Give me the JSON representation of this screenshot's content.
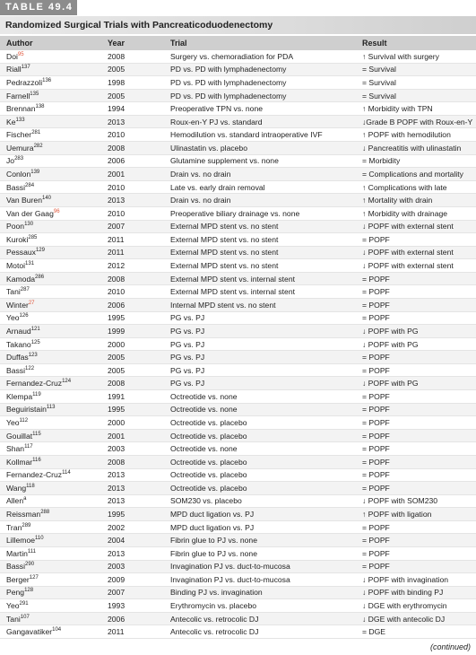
{
  "header": {
    "label": "TABLE 49.4",
    "title": "Randomized Surgical Trials with Pancreaticoduodenectomy"
  },
  "table": {
    "columns": [
      "Author",
      "Year",
      "Trial",
      "Result"
    ],
    "rows": [
      {
        "author": "Doi",
        "ref": "95",
        "ref_color": "#e0553a",
        "year": 2008,
        "trial": "Surgery vs. chemoradiation for PDA",
        "result": "↑ Survival with surgery"
      },
      {
        "author": "Riall",
        "ref": "137",
        "year": 2005,
        "trial": "PD vs. PD with lymphadenectomy",
        "result": "= Survival"
      },
      {
        "author": "Pedrazzoli",
        "ref": "136",
        "year": 1998,
        "trial": "PD vs. PD with lymphadenectomy",
        "result": "= Survival"
      },
      {
        "author": "Farnell",
        "ref": "135",
        "year": 2005,
        "trial": "PD vs. PD with lymphadenectomy",
        "result": "= Survival"
      },
      {
        "author": "Brennan",
        "ref": "138",
        "year": 1994,
        "trial": "Preoperative TPN vs. none",
        "result": "↑ Morbidity with TPN"
      },
      {
        "author": "Ke",
        "ref": "133",
        "year": 2013,
        "trial": "Roux-en-Y PJ vs. standard",
        "result": "↓Grade B POPF with Roux-en-Y"
      },
      {
        "author": "Fischer",
        "ref": "281",
        "year": 2010,
        "trial": "Hemodilution vs. standard intraoperative IVF",
        "result": "↑ POPF with hemodilution"
      },
      {
        "author": "Uemura",
        "ref": "282",
        "year": 2008,
        "trial": "Ulinastatin vs. placebo",
        "result": "↓ Pancreatitis with ulinastatin"
      },
      {
        "author": "Jo",
        "ref": "283",
        "year": 2006,
        "trial": "Glutamine supplement vs. none",
        "result": "= Morbidity"
      },
      {
        "author": "Conlon",
        "ref": "139",
        "year": 2001,
        "trial": "Drain vs. no drain",
        "result": "= Complications and mortality"
      },
      {
        "author": "Bassi",
        "ref": "284",
        "year": 2010,
        "trial": "Late vs. early drain removal",
        "result": "↑ Complications with late"
      },
      {
        "author": "Van Buren",
        "ref": "140",
        "year": 2013,
        "trial": "Drain vs. no drain",
        "result": "↑ Mortality with drain"
      },
      {
        "author": "Van der Gaag",
        "ref": "96",
        "ref_color": "#e0553a",
        "year": 2010,
        "trial": "Preoperative biliary drainage vs. none",
        "result": "↑ Morbidity with drainage"
      },
      {
        "author": "Poon",
        "ref": "130",
        "year": 2007,
        "trial": "External MPD stent vs. no stent",
        "result": "↓ POPF with external stent"
      },
      {
        "author": "Kuroki",
        "ref": "285",
        "year": 2011,
        "trial": "External MPD stent vs. no stent",
        "result": "= POPF"
      },
      {
        "author": "Pessaux",
        "ref": "129",
        "year": 2011,
        "trial": "External MPD stent vs. no stent",
        "result": "↓ POPF with external stent"
      },
      {
        "author": "Motoi",
        "ref": "131",
        "year": 2012,
        "trial": "External MPD stent vs. no stent",
        "result": "↓ POPF with external stent"
      },
      {
        "author": "Kamoda",
        "ref": "286",
        "year": 2008,
        "trial": "External MPD stent vs. internal stent",
        "result": "= POPF"
      },
      {
        "author": "Tani",
        "ref": "287",
        "year": 2010,
        "trial": "External MPD stent vs. internal stent",
        "result": "= POPF"
      },
      {
        "author": "Winter",
        "ref": "27",
        "ref_color": "#e0553a",
        "year": 2006,
        "trial": "Internal MPD stent vs. no stent",
        "result": "= POPF"
      },
      {
        "author": "Yeo",
        "ref": "126",
        "year": 1995,
        "trial": "PG vs. PJ",
        "result": "= POPF"
      },
      {
        "author": "Arnaud",
        "ref": "121",
        "year": 1999,
        "trial": "PG vs. PJ",
        "result": "↓ POPF with PG"
      },
      {
        "author": "Takano",
        "ref": "125",
        "year": 2000,
        "trial": "PG vs. PJ",
        "result": "↓ POPF with PG"
      },
      {
        "author": "Duffas",
        "ref": "123",
        "year": 2005,
        "trial": "PG vs. PJ",
        "result": "= POPF"
      },
      {
        "author": "Bassi",
        "ref": "122",
        "year": 2005,
        "trial": "PG vs. PJ",
        "result": "= POPF"
      },
      {
        "author": "Fernandez-Cruz",
        "ref": "124",
        "year": 2008,
        "trial": "PG vs. PJ",
        "result": "↓ POPF with PG"
      },
      {
        "author": "Klempa",
        "ref": "119",
        "year": 1991,
        "trial": "Octreotide vs. none",
        "result": "= POPF"
      },
      {
        "author": "Beguiristain",
        "ref": "113",
        "year": 1995,
        "trial": "Octreotide vs. none",
        "result": "= POPF"
      },
      {
        "author": "Yeo",
        "ref": "112",
        "year": 2000,
        "trial": "Octreotide vs. placebo",
        "result": "= POPF"
      },
      {
        "author": "Gouillat",
        "ref": "115",
        "year": 2001,
        "trial": "Octreotide vs. placebo",
        "result": "= POPF"
      },
      {
        "author": "Shan",
        "ref": "117",
        "year": 2003,
        "trial": "Octreotide vs. none",
        "result": "= POPF"
      },
      {
        "author": "Kollmar",
        "ref": "116",
        "year": 2008,
        "trial": "Octreotide vs. placebo",
        "result": "= POPF"
      },
      {
        "author": "Fernandez-Cruz",
        "ref": "114",
        "year": 2013,
        "trial": "Octreotide vs. placebo",
        "result": "= POPF"
      },
      {
        "author": "Wang",
        "ref": "118",
        "year": 2013,
        "trial": "Octreotide vs. placebo",
        "result": "= POPF"
      },
      {
        "author": "Allen",
        "ref": "a",
        "year": 2013,
        "trial": "SOM230 vs. placebo",
        "result": "↓ POPF with SOM230"
      },
      {
        "author": "Reissman",
        "ref": "288",
        "year": 1995,
        "trial": "MPD duct ligation vs. PJ",
        "result": "↑ POPF with ligation"
      },
      {
        "author": "Tran",
        "ref": "289",
        "year": 2002,
        "trial": "MPD duct ligation vs. PJ",
        "result": "= POPF"
      },
      {
        "author": "Lillemoe",
        "ref": "110",
        "year": 2004,
        "trial": "Fibrin glue to PJ vs. none",
        "result": "= POPF"
      },
      {
        "author": "Martin",
        "ref": "111",
        "year": 2013,
        "trial": "Fibrin glue to PJ vs. none",
        "result": "= POPF"
      },
      {
        "author": "Bassi",
        "ref": "290",
        "year": 2003,
        "trial": "Invagination PJ vs. duct-to-mucosa",
        "result": "= POPF"
      },
      {
        "author": "Berger",
        "ref": "127",
        "year": 2009,
        "trial": "Invagination PJ vs. duct-to-mucosa",
        "result": "↓ POPF with invagination"
      },
      {
        "author": "Peng",
        "ref": "128",
        "year": 2007,
        "trial": "Binding PJ vs. invagination",
        "result": "↓ POPF with binding PJ"
      },
      {
        "author": "Yeo",
        "ref": "291",
        "year": 1993,
        "trial": "Erythromycin vs. placebo",
        "result": "↓ DGE with erythromycin"
      },
      {
        "author": "Tani",
        "ref": "107",
        "year": 2006,
        "trial": "Antecolic vs. retrocolic DJ",
        "result": "↓ DGE with antecolic DJ"
      },
      {
        "author": "Gangavatiker",
        "ref": "104",
        "year": 2011,
        "trial": "Antecolic vs. retrocolic DJ",
        "result": "= DGE"
      }
    ]
  },
  "footer": {
    "note": "(continued)"
  }
}
